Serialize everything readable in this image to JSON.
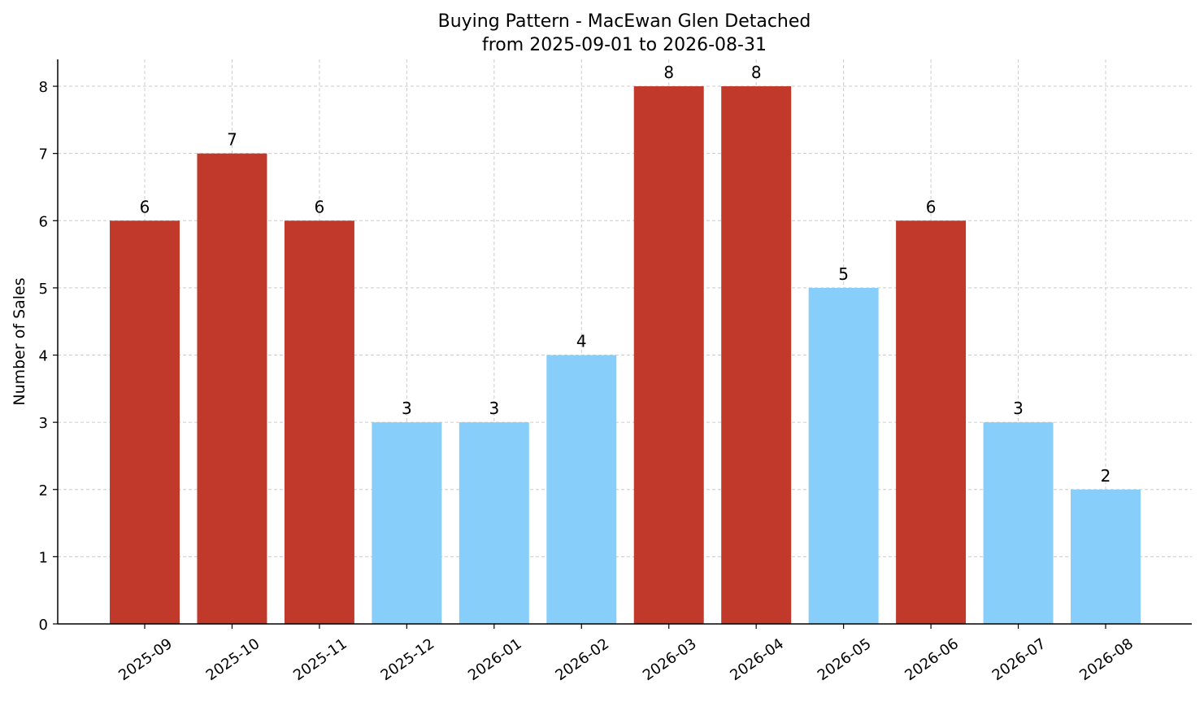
{
  "chart_data": {
    "type": "bar",
    "title": "Buying Pattern - MacEwan Glen Detached",
    "subtitle": "from 2025-09-01 to 2026-08-31",
    "xlabel": "",
    "ylabel": "Number of Sales",
    "categories": [
      "2025-09",
      "2025-10",
      "2025-11",
      "2025-12",
      "2026-01",
      "2026-02",
      "2026-03",
      "2026-04",
      "2026-05",
      "2026-06",
      "2026-07",
      "2026-08"
    ],
    "values": [
      6,
      7,
      6,
      3,
      3,
      4,
      8,
      8,
      5,
      6,
      3,
      2
    ],
    "bar_colors": [
      "#c0392b",
      "#c0392b",
      "#c0392b",
      "#87cefa",
      "#87cefa",
      "#87cefa",
      "#c0392b",
      "#c0392b",
      "#87cefa",
      "#c0392b",
      "#87cefa",
      "#87cefa"
    ],
    "yticks": [
      "0",
      "1",
      "2",
      "3",
      "4",
      "5",
      "6",
      "7",
      "8"
    ],
    "ylim": [
      0,
      8.4
    ],
    "grid": true,
    "legend": "none"
  }
}
